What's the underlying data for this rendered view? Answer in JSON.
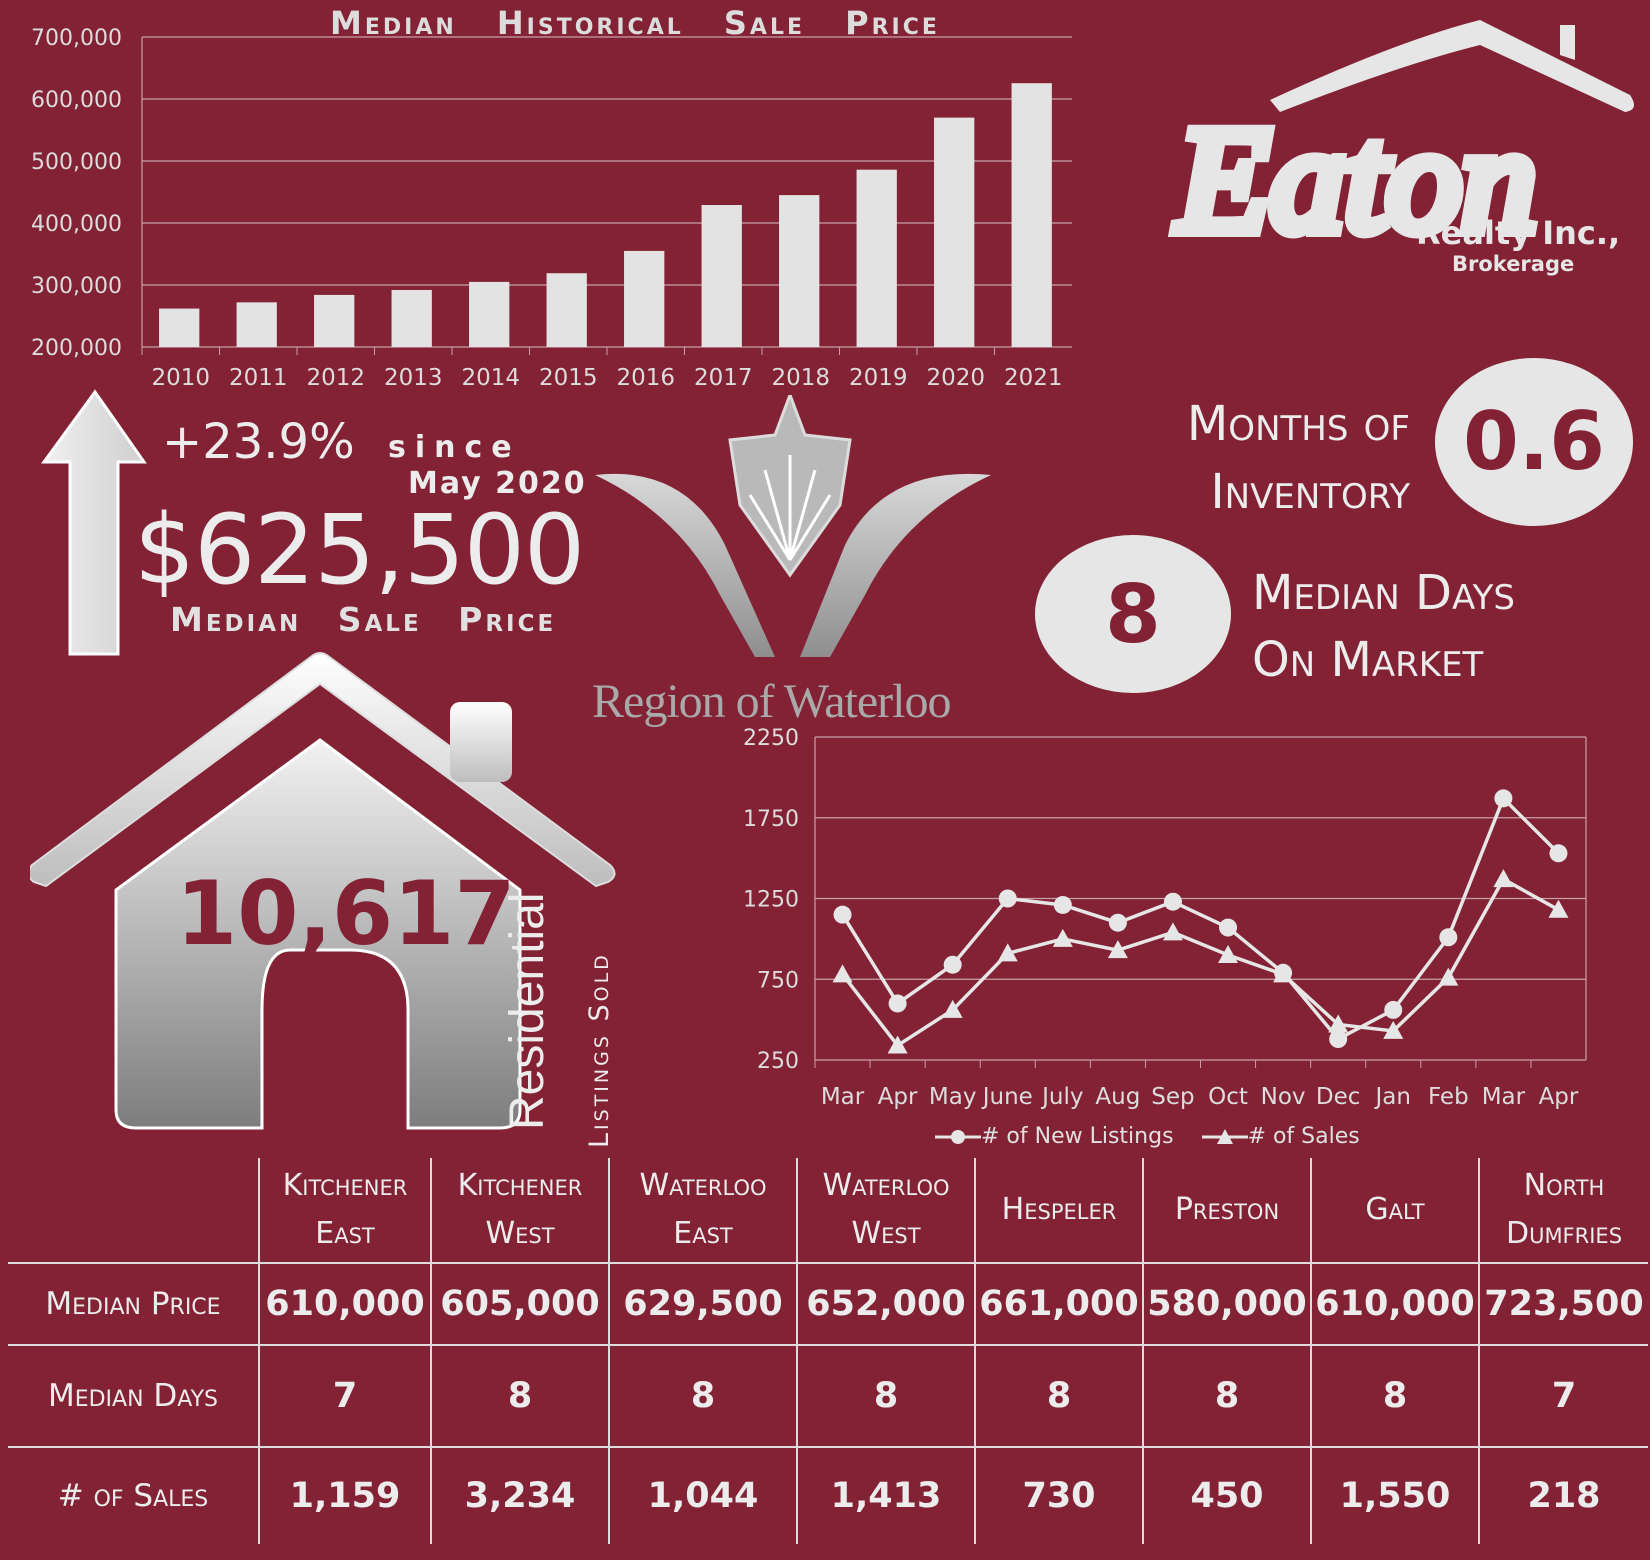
{
  "colors": {
    "background": "#822234",
    "foreground": "#e8e8e8",
    "accent": "#822234"
  },
  "brand": {
    "name": "Eaton",
    "company": "Realty Inc.,",
    "sub": "Brokerage"
  },
  "region": {
    "name": "Region of Waterloo"
  },
  "headline": {
    "change": "+23.9%",
    "since_word": "since",
    "since_date": "May 2020",
    "median_price": "$625,500",
    "median_price_label": "Median Sale Price"
  },
  "inventory": {
    "label_line1": "Months of",
    "label_line2": "Inventory",
    "value": "0.6"
  },
  "days_on_market": {
    "label_line1": "Median Days",
    "label_line2": "On Market",
    "value": "8"
  },
  "listings_sold": {
    "value": "10,617",
    "label": "Residential",
    "sublabel": "Listings Sold"
  },
  "icons": [
    "up-arrow-icon",
    "house-icon",
    "roof-icon",
    "region-logo-icon"
  ],
  "chart_data": [
    {
      "type": "bar",
      "title": "Median Historical Sale Price",
      "categories": [
        "2010",
        "2011",
        "2012",
        "2013",
        "2014",
        "2015",
        "2016",
        "2017",
        "2018",
        "2019",
        "2020",
        "2021"
      ],
      "values": [
        262000,
        272000,
        284000,
        292000,
        305000,
        319000,
        355000,
        429000,
        445000,
        486000,
        570000,
        625500
      ],
      "ylim": [
        200000,
        700000
      ],
      "yticks": [
        "200,000",
        "300,000",
        "400,000",
        "500,000",
        "600,000",
        "700,000"
      ],
      "grid": true
    },
    {
      "type": "line",
      "categories": [
        "Mar",
        "Apr",
        "May",
        "June",
        "July",
        "Aug",
        "Sep",
        "Oct",
        "Nov",
        "Dec",
        "Jan",
        "Feb",
        "Mar",
        "Apr"
      ],
      "series": [
        {
          "name": "# of New Listings",
          "marker": "circle",
          "values": [
            1150,
            600,
            840,
            1250,
            1210,
            1100,
            1230,
            1070,
            790,
            380,
            560,
            1010,
            1870,
            1530
          ]
        },
        {
          "name": "# of Sales",
          "marker": "triangle",
          "values": [
            780,
            340,
            560,
            910,
            1000,
            930,
            1040,
            900,
            780,
            470,
            430,
            760,
            1370,
            1180
          ]
        }
      ],
      "ylim": [
        250,
        2250
      ],
      "yticks": [
        "250",
        "750",
        "1250",
        "1750",
        "2250"
      ],
      "grid": true,
      "legend": "bottom"
    }
  ],
  "table": {
    "columns": [
      {
        "l1": "Kitchener",
        "l2": "East"
      },
      {
        "l1": "Kitchener",
        "l2": "West"
      },
      {
        "l1": "Waterloo",
        "l2": "East"
      },
      {
        "l1": "Waterloo",
        "l2": "West"
      },
      {
        "l1": "Hespeler",
        "l2": ""
      },
      {
        "l1": "Preston",
        "l2": ""
      },
      {
        "l1": "Galt",
        "l2": ""
      },
      {
        "l1": "North",
        "l2": "Dumfries"
      }
    ],
    "rows": [
      {
        "label": "Median Price",
        "values": [
          "610,000",
          "605,000",
          "629,500",
          "652,000",
          "661,000",
          "580,000",
          "610,000",
          "723,500"
        ]
      },
      {
        "label": "Median Days",
        "values": [
          "7",
          "8",
          "8",
          "8",
          "8",
          "8",
          "8",
          "7"
        ]
      },
      {
        "label": "# of Sales",
        "values": [
          "1,159",
          "3,234",
          "1,044",
          "1,413",
          "730",
          "450",
          "1,550",
          "218"
        ]
      }
    ]
  }
}
